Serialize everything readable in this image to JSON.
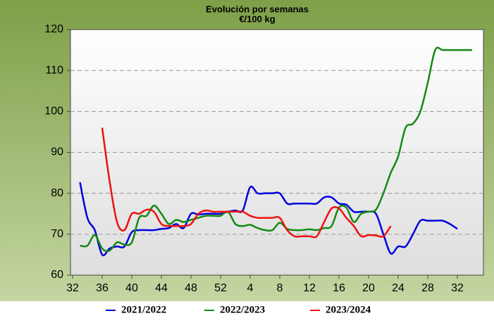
{
  "chart_data": {
    "type": "line",
    "title": "Evolución por semanas",
    "subtitle": "€/100 kg",
    "categories": [
      32,
      null,
      null,
      null,
      36,
      null,
      null,
      null,
      40,
      null,
      null,
      null,
      44,
      null,
      null,
      null,
      48,
      null,
      null,
      null,
      52,
      null,
      null,
      null,
      4,
      null,
      null,
      null,
      8,
      null,
      null,
      null,
      12,
      null,
      null,
      null,
      16,
      null,
      null,
      null,
      20,
      null,
      null,
      null,
      24,
      null,
      null,
      null,
      28,
      null,
      null,
      null,
      32,
      null,
      null
    ],
    "series": [
      {
        "name": "2021/2022",
        "color": "#0000dd",
        "values": [
          null,
          82.7,
          74,
          71,
          65,
          66.5,
          67,
          67,
          70.5,
          71,
          71,
          71,
          71.3,
          71.5,
          72.5,
          71.5,
          75,
          74.8,
          75,
          75,
          75,
          75.5,
          75.8,
          75.8,
          81.5,
          80,
          80,
          80,
          80,
          77.5,
          77.5,
          77.5,
          77.5,
          77.5,
          79,
          79,
          77.5,
          77.2,
          75.5,
          75.5,
          75.5,
          75,
          70,
          65.3,
          67,
          67,
          70,
          73.3,
          73.3,
          73.3,
          73.3,
          72.5,
          71.3,
          null,
          null
        ]
      },
      {
        "name": "2022/2023",
        "color": "#138a13",
        "values": [
          null,
          67.2,
          67.2,
          69.8,
          66.5,
          66,
          68,
          67.5,
          68,
          74,
          74.5,
          77,
          75,
          72.5,
          73.5,
          73,
          73.5,
          74,
          74.5,
          74.5,
          74.5,
          75.5,
          72.5,
          72,
          72.3,
          71.5,
          71,
          71,
          72.8,
          71.3,
          71,
          71,
          71.2,
          71,
          71.5,
          72,
          76.5,
          76.5,
          73,
          75,
          75.5,
          76,
          80,
          85,
          89,
          96,
          97,
          100,
          107,
          115,
          115,
          115,
          115,
          115,
          115
        ]
      },
      {
        "name": "2023/2024",
        "color": "#ee1111",
        "values": [
          null,
          null,
          null,
          null,
          96,
          83,
          73,
          71,
          75,
          75,
          76,
          75.5,
          72.5,
          72,
          72,
          72,
          72.5,
          75,
          75.8,
          75.5,
          75.5,
          75.5,
          75.5,
          75.5,
          74.5,
          74,
          74,
          74,
          74,
          71,
          69.5,
          69.5,
          69.5,
          69.5,
          73,
          76.3,
          76.3,
          74,
          72,
          69.5,
          69.8,
          69.7,
          69.5,
          72,
          null,
          null,
          null,
          null,
          null,
          null,
          null,
          null,
          null,
          null,
          null
        ]
      }
    ],
    "ylim": [
      60,
      120
    ],
    "yticks": [
      60,
      70,
      80,
      90,
      100,
      110,
      120
    ],
    "grid": true
  }
}
